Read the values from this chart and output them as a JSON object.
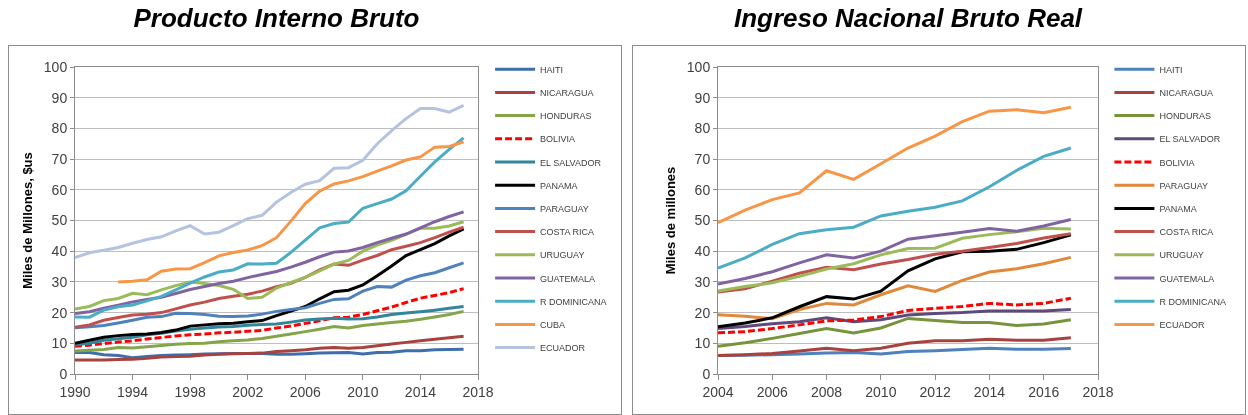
{
  "chart_data": [
    {
      "type": "line",
      "title": "Producto Interno Bruto",
      "ylabel": "Miles de Millones, $us",
      "xlim": [
        1990,
        2018
      ],
      "xticks": [
        1990,
        1994,
        1998,
        2002,
        2006,
        2010,
        2014,
        2018
      ],
      "ylim": [
        0,
        100
      ],
      "yticks": [
        0,
        10,
        20,
        30,
        40,
        50,
        60,
        70,
        80,
        90,
        100
      ],
      "grid": "y",
      "legend": "right",
      "x": [
        1990,
        1991,
        1992,
        1993,
        1994,
        1995,
        1996,
        1997,
        1998,
        1999,
        2000,
        2001,
        2002,
        2003,
        2004,
        2005,
        2006,
        2007,
        2008,
        2009,
        2010,
        2011,
        2012,
        2013,
        2014,
        2015,
        2016,
        2017
      ],
      "series": [
        {
          "name": "HAITI",
          "color": "#3f6fab",
          "values": [
            7,
            7,
            6.3,
            6,
            5.3,
            5.7,
            6,
            6.2,
            6.3,
            6.5,
            6.6,
            6.7,
            6.7,
            6.7,
            6.4,
            6.4,
            6.6,
            6.8,
            6.9,
            7,
            6.5,
            7,
            7.1,
            7.6,
            7.6,
            7.9,
            8,
            8.1
          ]
        },
        {
          "name": "NICARAGUA",
          "color": "#a8423f",
          "values": [
            4.6,
            4.6,
            4.6,
            4.7,
            4.8,
            5.1,
            5.5,
            5.7,
            5.8,
            6.2,
            6.4,
            6.6,
            6.7,
            6.8,
            7.3,
            7.6,
            7.9,
            8.4,
            8.6,
            8.4,
            8.6,
            9.2,
            9.8,
            10.3,
            10.8,
            11.3,
            11.8,
            12.3
          ]
        },
        {
          "name": "HONDURAS",
          "color": "#86a44a",
          "values": [
            7.5,
            7.7,
            8,
            8.6,
            8.5,
            8.9,
            9.3,
            9.7,
            9.9,
            10,
            10.5,
            10.8,
            11.1,
            11.6,
            12.3,
            13,
            13.8,
            14.6,
            15.5,
            15,
            15.8,
            16.3,
            16.8,
            17.2,
            17.8,
            18.6,
            19.4,
            20.4
          ]
        },
        {
          "name": "BOLIVIA",
          "color": "#ff0000",
          "line_style": "dashed",
          "values": [
            9,
            9.4,
            9.9,
            10.4,
            10.8,
            11.4,
            11.9,
            12.4,
            12.8,
            13,
            13.4,
            13.6,
            13.9,
            14.2,
            15,
            15.6,
            16.5,
            17.3,
            18.3,
            18.5,
            19.4,
            20.6,
            21.8,
            23.3,
            24.7,
            25.6,
            26.5,
            27.8
          ]
        },
        {
          "name": "EL SALVADOR",
          "color": "#31859c",
          "values": [
            9.5,
            10,
            11,
            11.5,
            12,
            12.8,
            13.3,
            14,
            14.6,
            15,
            15.3,
            15.5,
            15.9,
            16.1,
            16.3,
            16.9,
            17.6,
            17.9,
            18.2,
            17.9,
            18,
            18.6,
            19.4,
            19.9,
            20.3,
            20.8,
            21.4,
            22
          ]
        },
        {
          "name": "PANAMA",
          "color": "#000000",
          "values": [
            10,
            11,
            12,
            12.5,
            12.9,
            13,
            13.5,
            14.3,
            15.6,
            16,
            16.4,
            16.5,
            17,
            17.4,
            19,
            20.5,
            22,
            24.5,
            26.8,
            27.3,
            29,
            32,
            35.2,
            38.6,
            40.5,
            42.5,
            45,
            47.3
          ]
        },
        {
          "name": "PARAGUAY",
          "color": "#4f81bd",
          "values": [
            15.1,
            15.4,
            15.8,
            16.6,
            17.5,
            18.5,
            18.7,
            19.8,
            19.7,
            19.4,
            18.8,
            18.7,
            18.9,
            19.5,
            20.4,
            21,
            21.6,
            23,
            24.3,
            24.5,
            27,
            28.5,
            28.3,
            30.6,
            32,
            33,
            34.6,
            36.2
          ]
        },
        {
          "name": "COSTA RICA",
          "color": "#c0504d",
          "values": [
            15.2,
            16,
            17.5,
            18.4,
            19.2,
            19.5,
            20,
            21.2,
            22.5,
            23.4,
            24.6,
            25.3,
            26,
            27,
            28.4,
            29.5,
            31.5,
            33.9,
            35.8,
            35.4,
            37.1,
            38.6,
            40.5,
            41.6,
            42.8,
            44.4,
            46.2,
            47.8
          ]
        },
        {
          "name": "URUGUAY",
          "color": "#9bbb59",
          "values": [
            21.2,
            22,
            23.9,
            24.6,
            26.3,
            25.8,
            27.4,
            28.8,
            30,
            29.5,
            28.8,
            27.6,
            24.6,
            25,
            28,
            29.8,
            31.5,
            33.6,
            35.8,
            37,
            40,
            42,
            43.5,
            45.5,
            47.5,
            47.5,
            48.2,
            49.6
          ]
        },
        {
          "name": "GUATEMALA",
          "color": "#8064a2",
          "values": [
            19.7,
            20.3,
            21.4,
            22.4,
            23.5,
            24.3,
            25,
            26.2,
            27.5,
            28.5,
            29.5,
            30.2,
            31.4,
            32.4,
            33.4,
            34.8,
            36.4,
            38.2,
            39.7,
            40.1,
            41.2,
            42.8,
            44.2,
            45.6,
            47.6,
            49.6,
            51.3,
            52.8
          ]
        },
        {
          "name": "R DOMINICANA",
          "color": "#4bacc6",
          "values": [
            18.6,
            18.5,
            20.8,
            21.9,
            22.5,
            23.8,
            25.3,
            27.4,
            29.6,
            31.6,
            33.2,
            33.9,
            35.9,
            35.8,
            36.1,
            39.6,
            43.6,
            47.6,
            49,
            49.5,
            54,
            55.5,
            57,
            59.7,
            64.4,
            69.1,
            73.2,
            76.9
          ]
        },
        {
          "name": "CUBA",
          "color": "#f79646",
          "values": [
            null,
            null,
            null,
            30,
            30.2,
            30.7,
            33.5,
            34.2,
            34.3,
            36.3,
            38.5,
            39.6,
            40.4,
            41.8,
            44.4,
            49.8,
            55.5,
            59.6,
            61.9,
            62.9,
            64.3,
            66.1,
            67.8,
            69.7,
            70.7,
            73.9,
            74.1,
            75.6
          ]
        },
        {
          "name": "ECUADOR",
          "color": "#b3c3e0",
          "values": [
            37.9,
            39.5,
            40.3,
            41.2,
            42.6,
            43.8,
            44.7,
            46.6,
            48.3,
            45.6,
            46.2,
            48.3,
            50.6,
            51.7,
            56,
            59.1,
            61.8,
            63,
            67,
            67.2,
            69.6,
            75,
            79.3,
            83.2,
            86.5,
            86.5,
            85.3,
            87.5
          ]
        }
      ]
    },
    {
      "type": "line",
      "title": "Ingreso Nacional Bruto Real",
      "ylabel": "Miles de millones",
      "xlim": [
        2004,
        2018
      ],
      "xticks": [
        2004,
        2006,
        2008,
        2010,
        2012,
        2014,
        2016,
        2018
      ],
      "ylim": [
        0,
        100
      ],
      "yticks": [
        0,
        10,
        20,
        30,
        40,
        50,
        60,
        70,
        80,
        90,
        100
      ],
      "grid": "y",
      "legend": "right",
      "x": [
        2004,
        2005,
        2006,
        2007,
        2008,
        2009,
        2010,
        2011,
        2012,
        2013,
        2014,
        2015,
        2016,
        2017
      ],
      "series": [
        {
          "name": "HAITI",
          "color": "#4f81bd",
          "values": [
            6,
            6.1,
            6.3,
            6.5,
            6.8,
            7,
            6.5,
            7.3,
            7.6,
            8,
            8.4,
            8.1,
            8.1,
            8.3
          ]
        },
        {
          "name": "NICARAGUA",
          "color": "#a8423f",
          "values": [
            6,
            6.3,
            6.7,
            7.5,
            8.4,
            7.6,
            8.4,
            10,
            10.8,
            10.8,
            11.3,
            11,
            11,
            11.8
          ]
        },
        {
          "name": "HONDURAS",
          "color": "#77933c",
          "values": [
            9,
            10.2,
            11.6,
            13.2,
            14.8,
            13.4,
            15,
            18.1,
            17.4,
            16.8,
            16.8,
            15.8,
            16.3,
            17.7
          ]
        },
        {
          "name": "EL SALVADOR",
          "color": "#604a7b",
          "values": [
            14.8,
            15.5,
            16.4,
            17,
            18.3,
            17,
            17.7,
            19.2,
            19.7,
            20,
            20.5,
            20.5,
            20.5,
            21
          ]
        },
        {
          "name": "BOLIVIA",
          "color": "#ff0000",
          "line_style": "dashed",
          "values": [
            13.4,
            13.8,
            14.8,
            16,
            17.3,
            17.6,
            18.7,
            20.7,
            21.4,
            22,
            23,
            22.5,
            23,
            24.7
          ]
        },
        {
          "name": "PARAGUAY",
          "color": "#e0893b",
          "values": [
            19.3,
            18.8,
            18,
            21,
            23,
            22.5,
            25.8,
            28.7,
            26.9,
            30.5,
            33.2,
            34.3,
            35.9,
            38
          ]
        },
        {
          "name": "PANAMA",
          "color": "#000000",
          "values": [
            15.4,
            16.6,
            18.3,
            21.9,
            25.2,
            24.4,
            27,
            33.6,
            37.5,
            39.8,
            40,
            40.6,
            42.8,
            45.3
          ]
        },
        {
          "name": "COSTA RICA",
          "color": "#c0504d",
          "values": [
            26.7,
            27.8,
            30.2,
            32.8,
            34.8,
            34,
            35.8,
            37.3,
            39,
            40,
            41.2,
            42.5,
            44.3,
            45.7
          ]
        },
        {
          "name": "URUGUAY",
          "color": "#9bbb59",
          "values": [
            27,
            28.5,
            29.7,
            31.8,
            34.2,
            35.9,
            38.8,
            40.9,
            41,
            44.2,
            45.4,
            46.3,
            47.5,
            47.2
          ]
        },
        {
          "name": "GUATEMALA",
          "color": "#8064a2",
          "values": [
            29.3,
            31.1,
            33.3,
            36.2,
            38.8,
            37.8,
            40,
            43.9,
            45,
            46.2,
            47.4,
            46.5,
            48.2,
            50.3
          ]
        },
        {
          "name": "R DOMINICANA",
          "color": "#4bacc6",
          "values": [
            34.5,
            37.8,
            42.2,
            45.7,
            47,
            47.8,
            51.5,
            53,
            54.3,
            56.4,
            61,
            66.3,
            70.9,
            73.6
          ]
        },
        {
          "name": "ECUADOR",
          "color": "#f79646",
          "values": [
            49.3,
            53.4,
            56.8,
            59,
            66.2,
            63.4,
            68.5,
            73.6,
            77.5,
            82.2,
            85.6,
            86.1,
            85.1,
            86.9
          ]
        }
      ]
    }
  ]
}
